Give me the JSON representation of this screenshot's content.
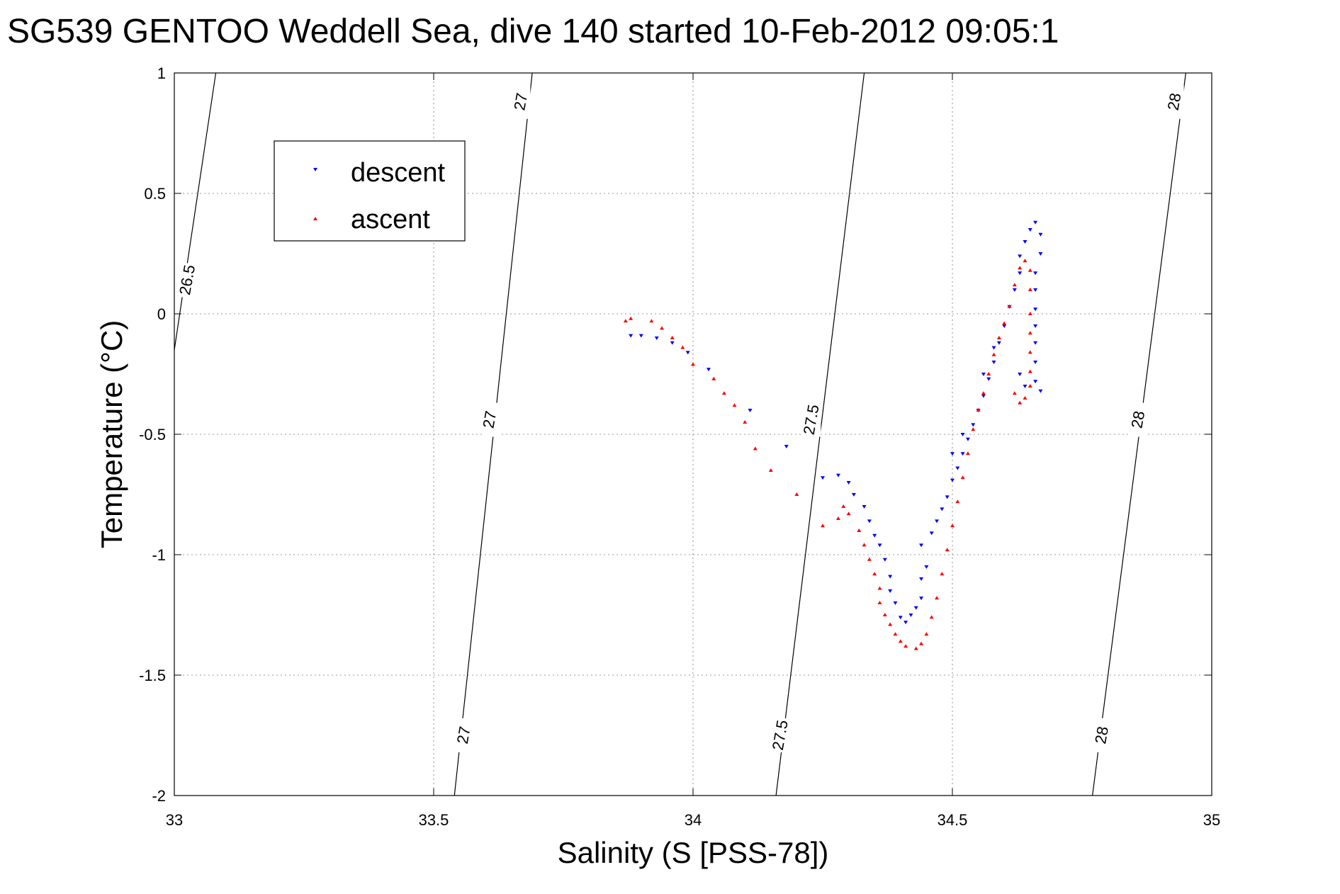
{
  "chart_data": {
    "type": "scatter",
    "title": "SG539 GENTOO Weddell Sea, dive 140 started 10-Feb-2012 09:05:1",
    "xlabel": "Salinity (S [PSS-78])",
    "ylabel": "Temperature (°C)",
    "xlim": [
      33,
      35
    ],
    "ylim": [
      -2,
      1
    ],
    "xticks": [
      33,
      33.5,
      34,
      34.5,
      35
    ],
    "yticks": [
      -2,
      -1.5,
      -1,
      -0.5,
      0,
      0.5,
      1
    ],
    "xtick_labels": [
      "33",
      "33.5",
      "34",
      "34.5",
      "35"
    ],
    "ytick_labels": [
      "-2",
      "-1.5",
      "-1",
      "-0.5",
      "0",
      "0.5",
      "1"
    ],
    "grid": true,
    "legend_position": "upper-left",
    "series": [
      {
        "name": "descent",
        "color": "#0000ff",
        "marker": "triangle-down",
        "points": [
          [
            33.88,
            -0.09
          ],
          [
            33.9,
            -0.09
          ],
          [
            33.93,
            -0.1
          ],
          [
            33.96,
            -0.12
          ],
          [
            33.99,
            -0.16
          ],
          [
            34.03,
            -0.23
          ],
          [
            34.11,
            -0.4
          ],
          [
            34.18,
            -0.55
          ],
          [
            34.25,
            -0.68
          ],
          [
            34.28,
            -0.67
          ],
          [
            34.3,
            -0.7
          ],
          [
            34.31,
            -0.75
          ],
          [
            34.33,
            -0.8
          ],
          [
            34.34,
            -0.86
          ],
          [
            34.35,
            -0.92
          ],
          [
            34.36,
            -0.96
          ],
          [
            34.37,
            -1.02
          ],
          [
            34.38,
            -1.09
          ],
          [
            34.38,
            -1.15
          ],
          [
            34.39,
            -1.2
          ],
          [
            34.4,
            -1.26
          ],
          [
            34.41,
            -1.28
          ],
          [
            34.42,
            -1.25
          ],
          [
            34.43,
            -1.22
          ],
          [
            34.44,
            -1.18
          ],
          [
            34.44,
            -1.1
          ],
          [
            34.45,
            -1.05
          ],
          [
            34.44,
            -0.96
          ],
          [
            34.46,
            -0.91
          ],
          [
            34.47,
            -0.86
          ],
          [
            34.48,
            -0.81
          ],
          [
            34.49,
            -0.76
          ],
          [
            34.5,
            -0.69
          ],
          [
            34.51,
            -0.64
          ],
          [
            34.52,
            -0.58
          ],
          [
            34.53,
            -0.52
          ],
          [
            34.54,
            -0.46
          ],
          [
            34.55,
            -0.4
          ],
          [
            34.56,
            -0.34
          ],
          [
            34.57,
            -0.27
          ],
          [
            34.58,
            -0.2
          ],
          [
            34.59,
            -0.12
          ],
          [
            34.6,
            -0.05
          ],
          [
            34.61,
            0.03
          ],
          [
            34.62,
            0.1
          ],
          [
            34.63,
            0.17
          ],
          [
            34.63,
            0.24
          ],
          [
            34.64,
            0.3
          ],
          [
            34.65,
            0.35
          ],
          [
            34.66,
            0.38
          ],
          [
            34.67,
            0.33
          ],
          [
            34.67,
            0.25
          ],
          [
            34.66,
            0.17
          ],
          [
            34.66,
            0.1
          ],
          [
            34.66,
            0.02
          ],
          [
            34.66,
            -0.05
          ],
          [
            34.66,
            -0.12
          ],
          [
            34.66,
            -0.2
          ],
          [
            34.66,
            -0.28
          ],
          [
            34.67,
            -0.32
          ],
          [
            34.64,
            -0.3
          ],
          [
            34.63,
            -0.25
          ],
          [
            34.58,
            -0.14
          ],
          [
            34.56,
            -0.25
          ],
          [
            34.52,
            -0.5
          ],
          [
            34.5,
            -0.58
          ]
        ]
      },
      {
        "name": "ascent",
        "color": "#ff0000",
        "marker": "triangle-up",
        "points": [
          [
            33.87,
            -0.03
          ],
          [
            33.88,
            -0.02
          ],
          [
            33.92,
            -0.03
          ],
          [
            33.94,
            -0.06
          ],
          [
            33.96,
            -0.1
          ],
          [
            33.98,
            -0.14
          ],
          [
            34.0,
            -0.21
          ],
          [
            34.04,
            -0.27
          ],
          [
            34.06,
            -0.33
          ],
          [
            34.08,
            -0.38
          ],
          [
            34.1,
            -0.45
          ],
          [
            34.12,
            -0.56
          ],
          [
            34.15,
            -0.65
          ],
          [
            34.2,
            -0.75
          ],
          [
            34.25,
            -0.88
          ],
          [
            34.28,
            -0.85
          ],
          [
            34.29,
            -0.8
          ],
          [
            34.3,
            -0.83
          ],
          [
            34.32,
            -0.9
          ],
          [
            34.33,
            -0.96
          ],
          [
            34.34,
            -1.02
          ],
          [
            34.35,
            -1.08
          ],
          [
            34.36,
            -1.14
          ],
          [
            34.36,
            -1.2
          ],
          [
            34.37,
            -1.25
          ],
          [
            34.38,
            -1.29
          ],
          [
            34.39,
            -1.33
          ],
          [
            34.4,
            -1.36
          ],
          [
            34.41,
            -1.38
          ],
          [
            34.43,
            -1.39
          ],
          [
            34.44,
            -1.37
          ],
          [
            34.45,
            -1.33
          ],
          [
            34.46,
            -1.26
          ],
          [
            34.47,
            -1.18
          ],
          [
            34.48,
            -1.08
          ],
          [
            34.49,
            -0.98
          ],
          [
            34.5,
            -0.88
          ],
          [
            34.51,
            -0.78
          ],
          [
            34.52,
            -0.68
          ],
          [
            34.53,
            -0.58
          ],
          [
            34.54,
            -0.48
          ],
          [
            34.55,
            -0.4
          ],
          [
            34.56,
            -0.33
          ],
          [
            34.57,
            -0.25
          ],
          [
            34.58,
            -0.17
          ],
          [
            34.59,
            -0.1
          ],
          [
            34.6,
            -0.04
          ],
          [
            34.61,
            0.03
          ],
          [
            34.62,
            0.12
          ],
          [
            34.63,
            0.19
          ],
          [
            34.64,
            0.22
          ],
          [
            34.65,
            0.18
          ],
          [
            34.65,
            0.1
          ],
          [
            34.65,
            0.0
          ],
          [
            34.65,
            -0.08
          ],
          [
            34.65,
            -0.16
          ],
          [
            34.65,
            -0.24
          ],
          [
            34.65,
            -0.3
          ],
          [
            34.64,
            -0.35
          ],
          [
            34.63,
            -0.37
          ],
          [
            34.62,
            -0.33
          ]
        ]
      }
    ],
    "isopycnal_labels": [
      "26.5",
      "27",
      "27",
      "27",
      "27.5",
      "27.5",
      "28",
      "28",
      "28"
    ]
  }
}
